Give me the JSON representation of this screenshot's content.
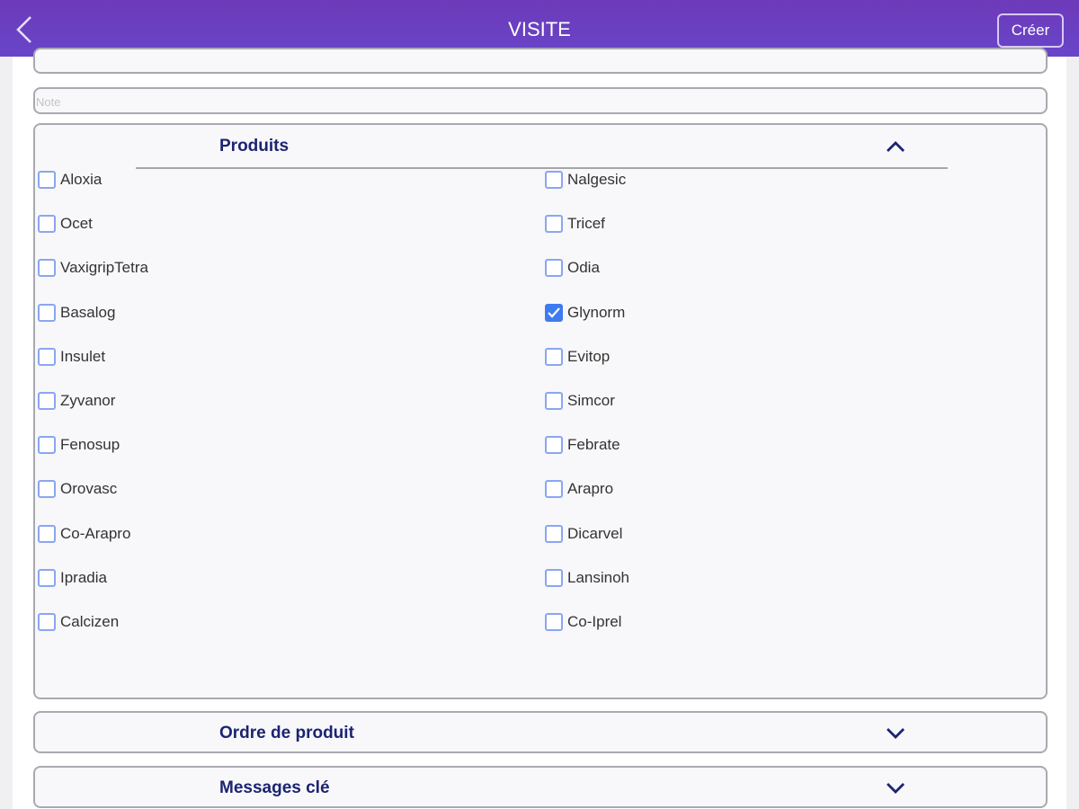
{
  "header": {
    "title": "VISITE",
    "create_label": "Créer",
    "accent": "#6a3fc0"
  },
  "note": {
    "placeholder": "Note"
  },
  "produits": {
    "title": "Produits",
    "expanded": true,
    "left": [
      {
        "label": "Aloxia",
        "checked": false
      },
      {
        "label": "Ocet",
        "checked": false
      },
      {
        "label": "VaxigripTetra",
        "checked": false
      },
      {
        "label": "Basalog",
        "checked": false
      },
      {
        "label": "Insulet",
        "checked": false
      },
      {
        "label": "Zyvanor",
        "checked": false
      },
      {
        "label": "Fenosup",
        "checked": false
      },
      {
        "label": "Orovasc",
        "checked": false
      },
      {
        "label": "Co-Arapro",
        "checked": false
      },
      {
        "label": "Ipradia",
        "checked": false
      },
      {
        "label": "Calcizen",
        "checked": false
      }
    ],
    "right": [
      {
        "label": "Nalgesic",
        "checked": false
      },
      {
        "label": "Tricef",
        "checked": false
      },
      {
        "label": "Odia",
        "checked": false
      },
      {
        "label": "Glynorm",
        "checked": true
      },
      {
        "label": "Evitop",
        "checked": false
      },
      {
        "label": "Simcor",
        "checked": false
      },
      {
        "label": "Febrate",
        "checked": false
      },
      {
        "label": "Arapro",
        "checked": false
      },
      {
        "label": "Dicarvel",
        "checked": false
      },
      {
        "label": "Lansinoh",
        "checked": false
      },
      {
        "label": "Co-Iprel",
        "checked": false
      }
    ]
  },
  "sections": [
    {
      "title": "Ordre de produit",
      "expanded": false
    },
    {
      "title": "Messages clé",
      "expanded": false
    }
  ]
}
